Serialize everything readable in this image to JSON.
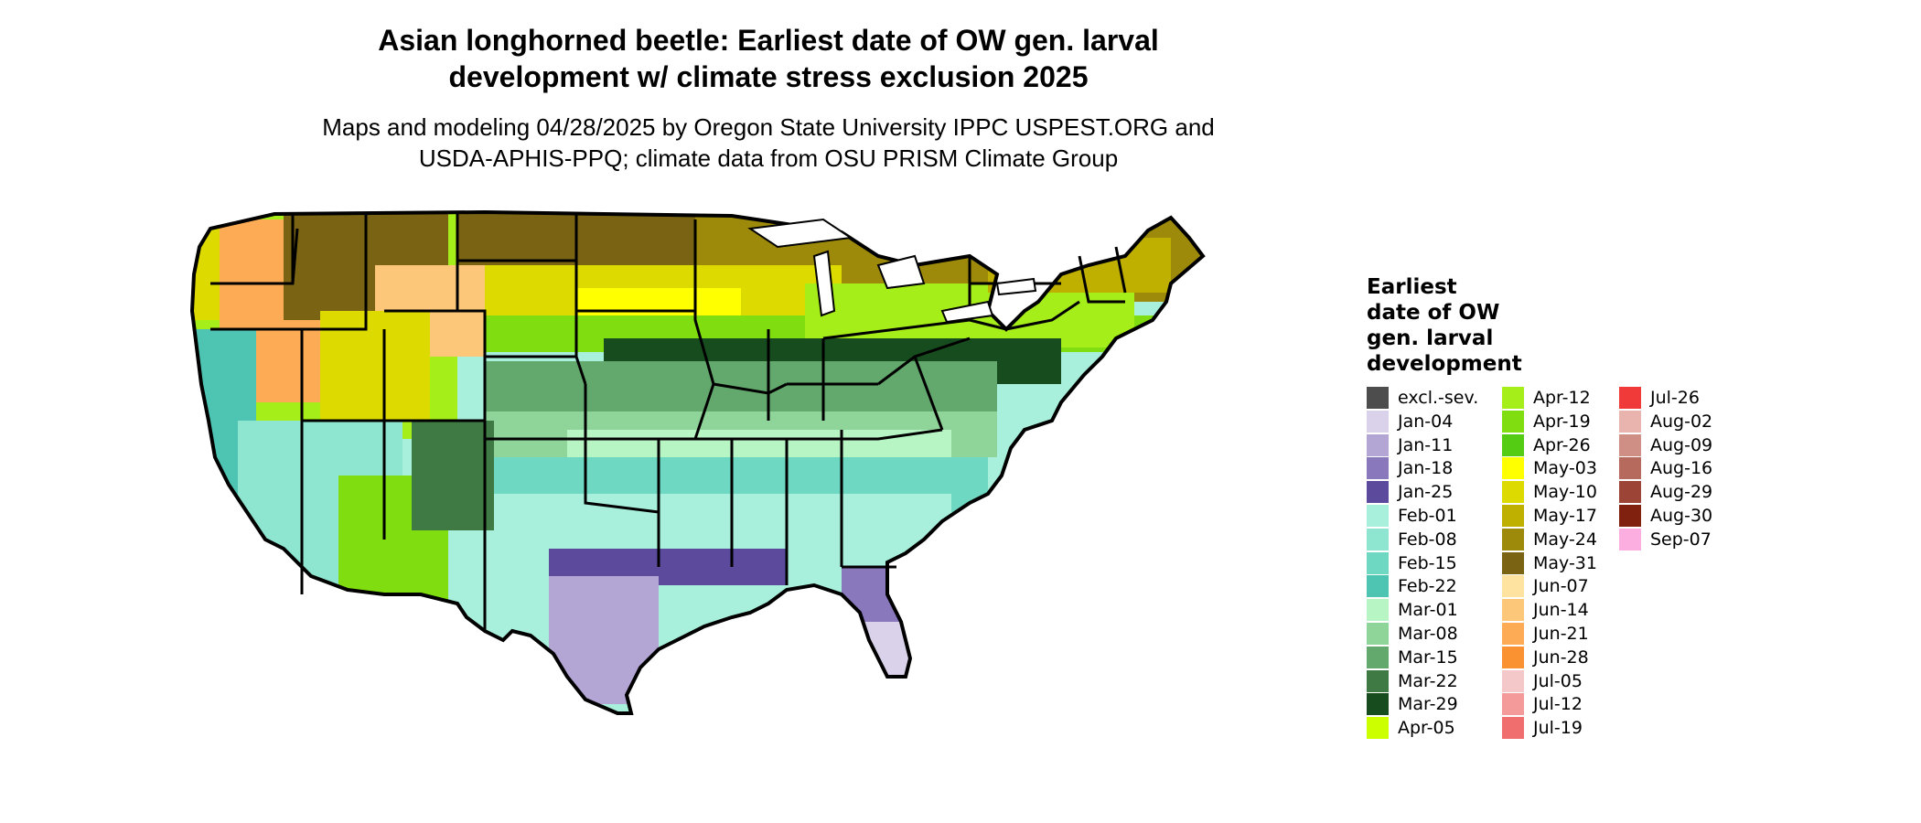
{
  "title": {
    "line1": "Asian longhorned beetle: Earliest date of OW gen. larval",
    "line2": "development w/ climate stress exclusion 2025"
  },
  "subtitle": {
    "line1": "Maps and modeling 04/28/2025 by Oregon State University IPPC USPEST.ORG and",
    "line2": "USDA-APHIS-PPQ; climate data from OSU PRISM Climate Group"
  },
  "legend": {
    "title_lines": [
      "Earliest",
      "date of OW",
      "gen. larval",
      "development"
    ],
    "columns": [
      [
        {
          "label": "excl.-sev.",
          "color": "#4d4d4d"
        },
        {
          "label": "Jan-04",
          "color": "#d9d2ea"
        },
        {
          "label": "Jan-11",
          "color": "#b3a6d4"
        },
        {
          "label": "Jan-18",
          "color": "#8a78bd"
        },
        {
          "label": "Jan-25",
          "color": "#5c4a9c"
        },
        {
          "label": "Feb-01",
          "color": "#a8f0dc"
        },
        {
          "label": "Feb-08",
          "color": "#8ee6d0"
        },
        {
          "label": "Feb-15",
          "color": "#6fd8c2"
        },
        {
          "label": "Feb-22",
          "color": "#4ec4b2"
        },
        {
          "label": "Mar-01",
          "color": "#b8f5c4"
        },
        {
          "label": "Mar-08",
          "color": "#8fd498"
        },
        {
          "label": "Mar-15",
          "color": "#63a86c"
        },
        {
          "label": "Mar-22",
          "color": "#3f7a45"
        },
        {
          "label": "Mar-29",
          "color": "#174d1e"
        },
        {
          "label": "Apr-05",
          "color": "#ccff00"
        }
      ],
      [
        {
          "label": "Apr-12",
          "color": "#a6ee1a"
        },
        {
          "label": "Apr-19",
          "color": "#7fdd10"
        },
        {
          "label": "Apr-26",
          "color": "#55cc14"
        },
        {
          "label": "May-03",
          "color": "#ffff00"
        },
        {
          "label": "May-10",
          "color": "#ddda00"
        },
        {
          "label": "May-17",
          "color": "#bfb000"
        },
        {
          "label": "May-24",
          "color": "#9e8a0a"
        },
        {
          "label": "May-31",
          "color": "#7a6414"
        },
        {
          "label": "Jun-07",
          "color": "#fde2a0"
        },
        {
          "label": "Jun-14",
          "color": "#fdc77a"
        },
        {
          "label": "Jun-21",
          "color": "#fdac55"
        },
        {
          "label": "Jun-28",
          "color": "#fb9232"
        },
        {
          "label": "Jul-05",
          "color": "#f4c8c8"
        },
        {
          "label": "Jul-12",
          "color": "#f49a9a"
        },
        {
          "label": "Jul-19",
          "color": "#f06e6e"
        }
      ],
      [
        {
          "label": "Jul-26",
          "color": "#f03a3a"
        },
        {
          "label": "Aug-02",
          "color": "#e8b4ad"
        },
        {
          "label": "Aug-09",
          "color": "#cf8f85"
        },
        {
          "label": "Aug-16",
          "color": "#b66a5e"
        },
        {
          "label": "Aug-29",
          "color": "#9c4536"
        },
        {
          "label": "Aug-30",
          "color": "#80200f"
        },
        {
          "label": "Sep-07",
          "color": "#fcaee0"
        }
      ]
    ]
  },
  "map": {
    "region": "contiguous-united-states",
    "outline_color": "#000000"
  }
}
